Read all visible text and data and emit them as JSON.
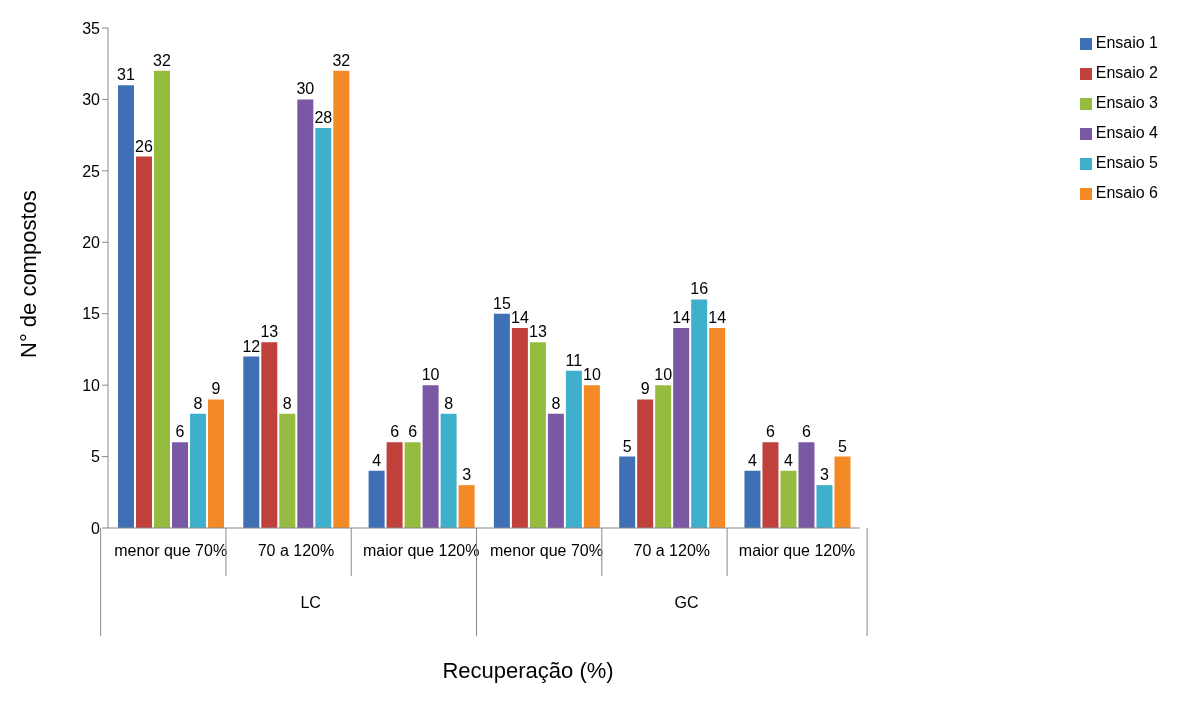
{
  "chart_data": {
    "type": "bar",
    "xlabel": "Recuperação (%)",
    "ylabel": "N° de compostos",
    "categories": [
      "menor que 70%",
      "70 a 120%",
      "maior que 120%",
      "menor que 70%",
      "70 a 120%",
      "maior que 120%"
    ],
    "annotations": [
      "LC",
      "GC"
    ],
    "series": [
      {
        "name": "Ensaio 1",
        "color": "#3f6fb5",
        "values": [
          31,
          12,
          4,
          15,
          5,
          4
        ]
      },
      {
        "name": "Ensaio 2",
        "color": "#c0403c",
        "values": [
          26,
          13,
          6,
          14,
          9,
          6
        ]
      },
      {
        "name": "Ensaio 3",
        "color": "#95bb3f",
        "values": [
          32,
          8,
          6,
          13,
          10,
          4
        ]
      },
      {
        "name": "Ensaio 4",
        "color": "#7a58a4",
        "values": [
          6,
          30,
          10,
          8,
          14,
          6
        ]
      },
      {
        "name": "Ensaio 5",
        "color": "#3fb0cc",
        "values": [
          8,
          28,
          8,
          11,
          16,
          3
        ]
      },
      {
        "name": "Ensaio 6",
        "color": "#f38a26",
        "values": [
          9,
          32,
          3,
          10,
          14,
          5
        ]
      }
    ],
    "ylim": [
      0,
      35
    ],
    "yticks": [
      0,
      5,
      10,
      15,
      20,
      25,
      30,
      35
    ],
    "grid": false,
    "legend": "top right",
    "data_labels": true
  }
}
